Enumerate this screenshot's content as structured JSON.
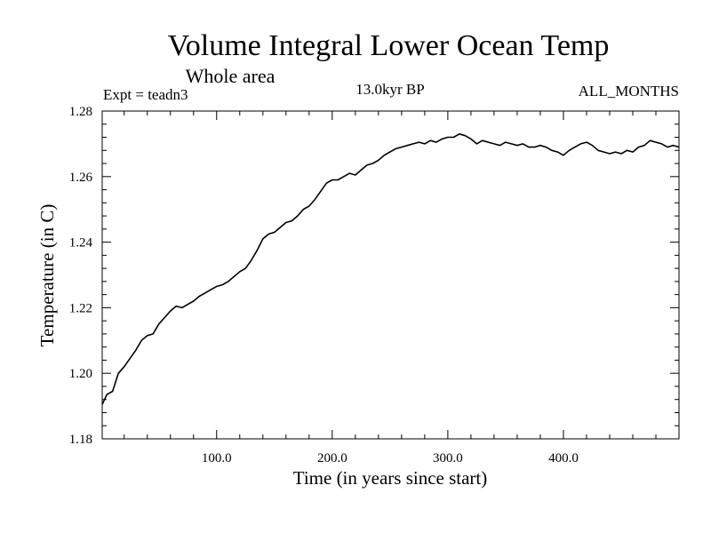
{
  "chart_data": {
    "type": "line",
    "title": "Volume Integral Lower Ocean Temp",
    "subtitle": "Whole area",
    "expt_label": "Expt = teadn3",
    "period_label": "13.0kyr BP",
    "months_label": "ALL_MONTHS",
    "xlabel": "Time (in years since start)",
    "ylabel": "Temperature (in C)",
    "xlim": [
      1,
      500
    ],
    "ylim": [
      1.18,
      1.28
    ],
    "x_ticks": [
      {
        "value": 100,
        "label": "100.0"
      },
      {
        "value": 200,
        "label": "200.0"
      },
      {
        "value": 300,
        "label": "300.0"
      },
      {
        "value": 400,
        "label": "400.0"
      }
    ],
    "y_ticks": [
      {
        "value": 1.18,
        "label": "1.18"
      },
      {
        "value": 1.2,
        "label": "1.20"
      },
      {
        "value": 1.22,
        "label": "1.22"
      },
      {
        "value": 1.24,
        "label": "1.24"
      },
      {
        "value": 1.26,
        "label": "1.26"
      },
      {
        "value": 1.28,
        "label": "1.28"
      }
    ],
    "grid": false,
    "series": [
      {
        "name": "Volume Integral Lower Ocean Temp",
        "color": "#000000",
        "x": [
          1,
          5,
          10,
          15,
          20,
          25,
          30,
          35,
          40,
          45,
          50,
          55,
          60,
          65,
          70,
          75,
          80,
          85,
          90,
          95,
          100,
          105,
          110,
          115,
          120,
          125,
          130,
          135,
          140,
          145,
          150,
          155,
          160,
          165,
          170,
          175,
          180,
          185,
          190,
          195,
          200,
          205,
          210,
          215,
          220,
          225,
          230,
          235,
          240,
          245,
          250,
          255,
          260,
          265,
          270,
          275,
          280,
          285,
          290,
          295,
          300,
          305,
          310,
          315,
          320,
          325,
          330,
          335,
          340,
          345,
          350,
          355,
          360,
          365,
          370,
          375,
          380,
          385,
          390,
          395,
          400,
          405,
          410,
          415,
          420,
          425,
          430,
          435,
          440,
          445,
          450,
          455,
          460,
          465,
          470,
          475,
          480,
          485,
          490,
          495,
          500
        ],
        "values": [
          1.1905,
          1.1935,
          1.1945,
          1.2,
          1.202,
          1.2045,
          1.207,
          1.21,
          1.2115,
          1.212,
          1.215,
          1.217,
          1.219,
          1.2205,
          1.22,
          1.221,
          1.222,
          1.2235,
          1.2245,
          1.2255,
          1.2265,
          1.227,
          1.228,
          1.2295,
          1.231,
          1.232,
          1.2345,
          1.2375,
          1.241,
          1.2425,
          1.243,
          1.2445,
          1.246,
          1.2465,
          1.248,
          1.25,
          1.251,
          1.253,
          1.2555,
          1.258,
          1.259,
          1.259,
          1.26,
          1.261,
          1.2605,
          1.262,
          1.2635,
          1.264,
          1.265,
          1.2665,
          1.2675,
          1.2685,
          1.269,
          1.2695,
          1.27,
          1.2705,
          1.27,
          1.271,
          1.2705,
          1.2715,
          1.272,
          1.272,
          1.273,
          1.2725,
          1.2715,
          1.27,
          1.271,
          1.2705,
          1.27,
          1.2695,
          1.2705,
          1.27,
          1.2695,
          1.27,
          1.269,
          1.269,
          1.2695,
          1.269,
          1.268,
          1.2675,
          1.2665,
          1.268,
          1.269,
          1.27,
          1.2705,
          1.2695,
          1.268,
          1.2675,
          1.267,
          1.2675,
          1.267,
          1.268,
          1.2675,
          1.269,
          1.2695,
          1.271,
          1.2705,
          1.27,
          1.269,
          1.2695,
          1.269
        ]
      }
    ]
  }
}
